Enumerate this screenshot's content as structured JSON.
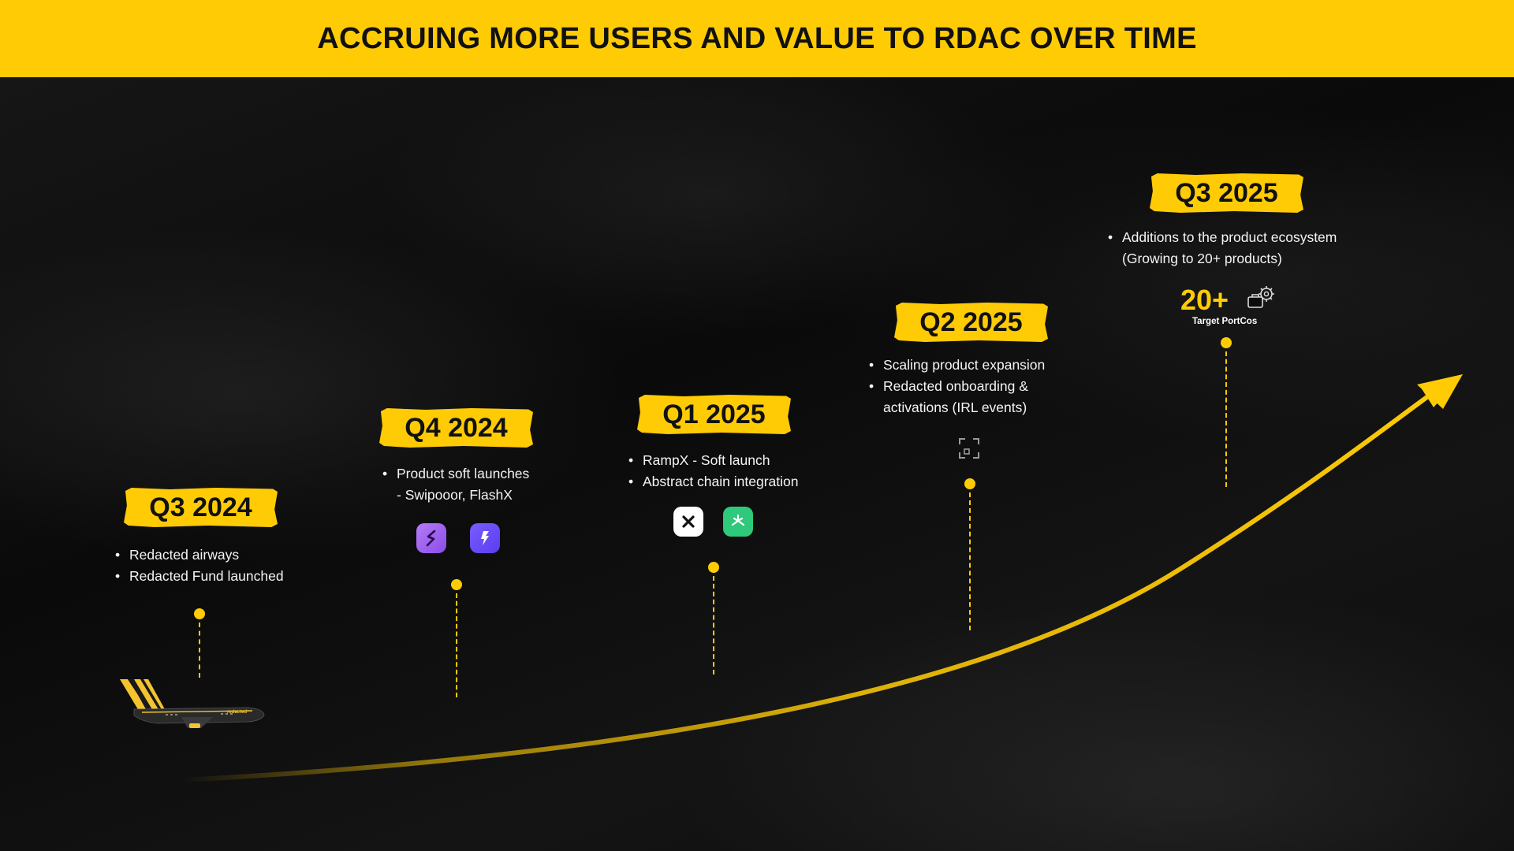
{
  "header": {
    "title": "ACCRUING MORE USERS AND VALUE TO RDAC OVER TIME"
  },
  "colors": {
    "accent": "#ffcb05",
    "background": "#0b0b0b",
    "header_text": "#111111"
  },
  "milestones": [
    {
      "label": "Q3 2024",
      "bullets": [
        "Redacted airways",
        "Redacted Fund launched"
      ],
      "icons": [
        "airplane-icon"
      ]
    },
    {
      "label": "Q4 2024",
      "bullets": [
        "Product soft launches",
        "- Swipooor, FlashX"
      ],
      "icons": [
        "swipooor-app-icon",
        "flashx-app-icon"
      ]
    },
    {
      "label": "Q1 2025",
      "bullets": [
        "RampX - Soft launch",
        "Abstract chain integration"
      ],
      "icons": [
        "rampx-app-icon",
        "abstract-chain-app-icon"
      ]
    },
    {
      "label": "Q2 2025",
      "bullets": [
        "Scaling product expansion",
        "Redacted onboarding &",
        "activations (IRL events)"
      ],
      "icons": [
        "expand-frame-icon"
      ]
    },
    {
      "label": "Q3 2025",
      "bullets": [
        "Additions to the product ecosystem",
        "(Growing to 20+ products)"
      ],
      "metric": {
        "value": "20+",
        "label": "Target PortCos"
      },
      "icons": [
        "portfolio-gears-icon"
      ]
    }
  ],
  "plane": {
    "livery_text": "redacted"
  }
}
